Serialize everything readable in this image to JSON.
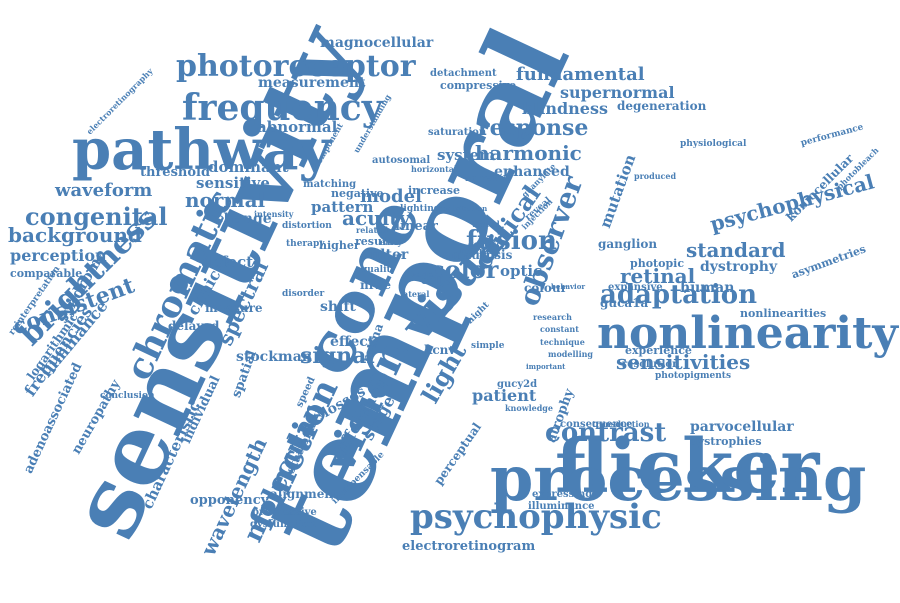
{
  "colors": {
    "word": "#4a7fb5",
    "background": "#ffffff"
  },
  "words": [
    "temporal",
    "sensitivity",
    "flicker",
    "processing",
    "cone",
    "pathway",
    "nonlinearity",
    "visual",
    "vision",
    "frequency",
    "chromatic",
    "photoreceptor",
    "function",
    "psychophysic",
    "contrast",
    "brightness",
    "adaptation",
    "observer",
    "fusion",
    "molecular",
    "critical",
    "color",
    "congenital",
    "signal",
    "light",
    "sensitivities",
    "response",
    "fundamental",
    "supernormal",
    "blindness",
    "psychophysical",
    "spectral",
    "retinal",
    "standard",
    "wavelength",
    "electroretinogram",
    "acuity",
    "model",
    "waveform",
    "harmonic",
    "consistent",
    "background",
    "magnocellular",
    "measurement",
    "perception",
    "luminance",
    "normal",
    "sensitive",
    "dominant",
    "abnormal",
    "threshold",
    "clinical",
    "syndrome",
    "human",
    "parvocellular",
    "dystrophy",
    "degeneration",
    "enhanced",
    "system",
    "frequencies",
    "stage",
    "patient",
    "difference",
    "characteristic",
    "individual",
    "opponency",
    "progressive",
    "dysfunction",
    "alignment",
    "perceptual",
    "expressing",
    "illuminance",
    "delayed",
    "stockman",
    "spatial",
    "losses",
    "effect",
    "shift",
    "measure",
    "defect",
    "change",
    "pattern",
    "filter",
    "result",
    "optic",
    "amaurosis",
    "colour",
    "ganglion",
    "photopic",
    "guca1a",
    "expansive",
    "nonlinearities",
    "asymmetries",
    "koniocellular",
    "performance",
    "experience",
    "resolution",
    "photopigments",
    "dystrophies",
    "atrophy",
    "consequence",
    "compressive",
    "detachment",
    "saturation",
    "narrative",
    "conclusion",
    "adenoassociated",
    "neuropathy",
    "logarithmic",
    "comparable",
    "reinterpretation",
    "mutation",
    "linear",
    "increase",
    "negative",
    "matching",
    "kcnv",
    "stationary",
    "speed",
    "nr2e",
    "physiological",
    "photobleach",
    "electroretinography",
    "indispensable",
    "distortion",
    "therapy",
    "higher",
    "related",
    "quality",
    "lighting",
    "autosomal",
    "horizontal",
    "guanylate",
    "injection",
    "retina",
    "cell",
    "tested",
    "understanding",
    "component",
    "gucy2d",
    "knowledge",
    "modelling",
    "technique",
    "transduction",
    "important",
    "constant",
    "research",
    "produced",
    "disorder",
    "lateral",
    "simple",
    "night",
    "neural",
    "early",
    "reveal",
    "intensity",
    "behavior",
    "genetic",
    "shorter",
    "contribution"
  ]
}
